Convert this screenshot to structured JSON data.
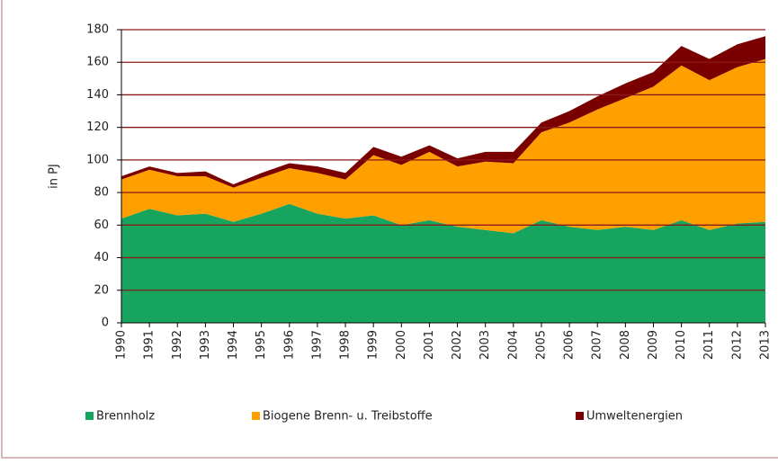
{
  "chart_data": {
    "type": "stacked_area",
    "y_label": "in PJ",
    "categories": [
      "1990",
      "1991",
      "1992",
      "1993",
      "1994",
      "1995",
      "1996",
      "1997",
      "1998",
      "1999",
      "2000",
      "2001",
      "2002",
      "2003",
      "2004",
      "2005",
      "2006",
      "2007",
      "2008",
      "2009",
      "2010",
      "2011",
      "2012",
      "2013"
    ],
    "series": [
      {
        "name": "Brennholz",
        "color": "#17a45e",
        "values": [
          64,
          70,
          66,
          67,
          62,
          67,
          73,
          67,
          64,
          66,
          60,
          63,
          59,
          57,
          55,
          63,
          59,
          57,
          59,
          57,
          63,
          57,
          61,
          62
        ]
      },
      {
        "name": "Biogene Brenn- u. Treibstoffe",
        "color": "#ffa000",
        "values": [
          24,
          24,
          24,
          23,
          21,
          22,
          22,
          25,
          24,
          37,
          37,
          42,
          37,
          42,
          43,
          54,
          64,
          74,
          79,
          88,
          95,
          92,
          96,
          100
        ]
      },
      {
        "name": "Umweltenergien",
        "color": "#7a0000",
        "values": [
          2,
          2,
          2,
          3,
          2,
          3,
          3,
          4,
          4,
          5,
          5,
          4,
          5,
          6,
          7,
          6,
          7,
          8,
          9,
          9,
          12,
          13,
          14,
          14
        ]
      }
    ],
    "ylim": [
      0,
      180
    ],
    "yticks": [
      0,
      20,
      40,
      60,
      80,
      100,
      120,
      140,
      160,
      180
    ],
    "grid": true
  }
}
